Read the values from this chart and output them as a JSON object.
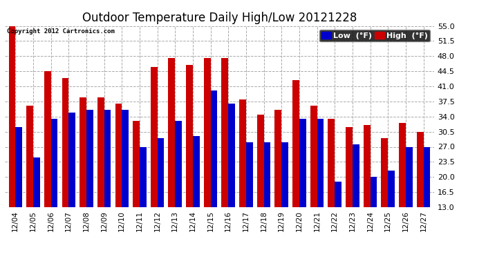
{
  "title": "Outdoor Temperature Daily High/Low 20121228",
  "copyright": "Copyright 2012 Cartronics.com",
  "legend_low": "Low  (°F)",
  "legend_high": "High  (°F)",
  "dates": [
    "12/04",
    "12/05",
    "12/06",
    "12/07",
    "12/08",
    "12/09",
    "12/10",
    "12/11",
    "12/12",
    "12/13",
    "12/14",
    "12/15",
    "12/16",
    "12/17",
    "12/18",
    "12/19",
    "12/20",
    "12/21",
    "12/22",
    "12/23",
    "12/24",
    "12/25",
    "12/26",
    "12/27"
  ],
  "high": [
    55.0,
    36.5,
    44.5,
    43.0,
    38.5,
    38.5,
    37.0,
    33.0,
    45.5,
    47.5,
    46.0,
    47.5,
    47.5,
    38.0,
    34.5,
    35.5,
    42.5,
    36.5,
    33.5,
    31.5,
    32.0,
    29.0,
    32.5,
    30.5
  ],
  "low": [
    31.5,
    24.5,
    33.5,
    35.0,
    35.5,
    35.5,
    35.5,
    27.0,
    29.0,
    33.0,
    29.5,
    40.0,
    37.0,
    28.0,
    28.0,
    28.0,
    33.5,
    33.5,
    19.0,
    27.5,
    20.0,
    21.5,
    27.0,
    27.0
  ],
  "ymin": 13.0,
  "ylim": [
    13.0,
    55.0
  ],
  "yticks": [
    13.0,
    16.5,
    20.0,
    23.5,
    27.0,
    30.5,
    34.0,
    37.5,
    41.0,
    44.5,
    48.0,
    51.5,
    55.0
  ],
  "low_color": "#0000cc",
  "high_color": "#cc0000",
  "bg_color": "#ffffff",
  "grid_color": "#aaaaaa",
  "title_fontsize": 12,
  "label_fontsize": 8,
  "bar_width": 0.38
}
